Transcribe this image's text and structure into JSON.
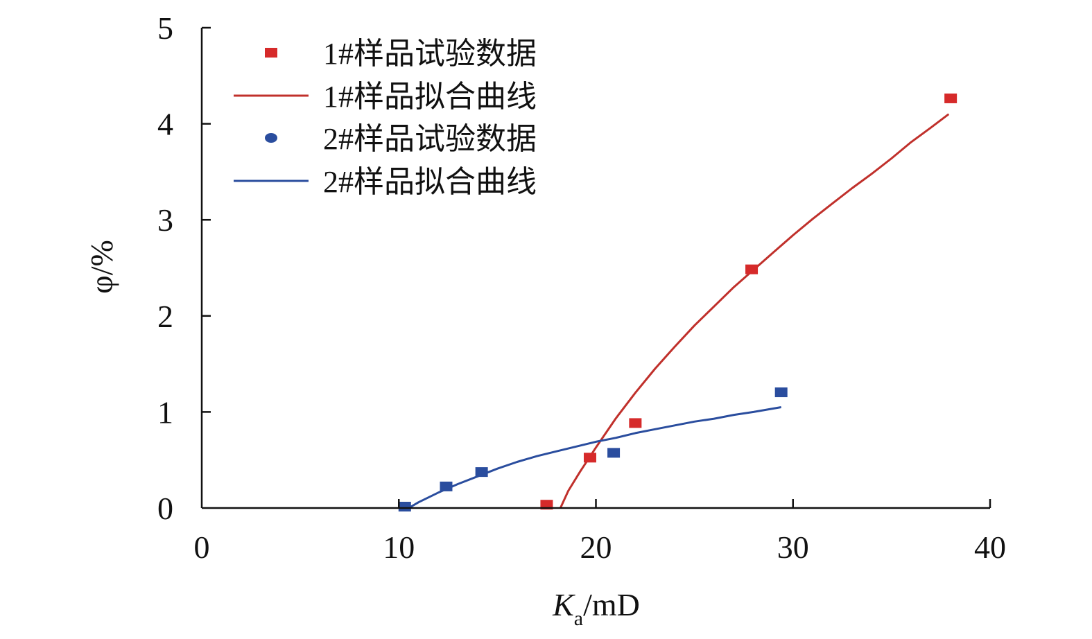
{
  "chart_data": {
    "type": "scatter",
    "title": "",
    "xlabel": {
      "main": "K",
      "sub": "a",
      "unit": "/mD"
    },
    "ylabel": "φ/%",
    "xlim": [
      0,
      40
    ],
    "ylim": [
      0,
      5
    ],
    "x_ticks": [
      "0",
      "10",
      "20",
      "30",
      "40"
    ],
    "y_ticks": [
      "0",
      "1",
      "2",
      "3",
      "4",
      "5"
    ],
    "grid": false,
    "legend_position": "top-left",
    "series": [
      {
        "name": "1#样品试验数据",
        "kind": "points",
        "marker": "square",
        "color": "#d62a2a",
        "x": [
          17.5,
          19.7,
          22.0,
          27.9,
          38.0
        ],
        "y": [
          0.02,
          0.51,
          0.87,
          2.47,
          4.25
        ]
      },
      {
        "name": "1#样品拟合曲线",
        "kind": "line",
        "color": "#c0302b",
        "x": [
          18.2,
          18.6,
          19.2,
          20.0,
          21.0,
          22.0,
          23.0,
          24.0,
          25.0,
          26.0,
          27.0,
          28.0,
          29.0,
          30.0,
          31.0,
          32.0,
          33.0,
          34.0,
          35.0,
          36.0,
          37.0,
          37.9
        ],
        "y": [
          0.0,
          0.18,
          0.38,
          0.63,
          0.93,
          1.2,
          1.45,
          1.68,
          1.9,
          2.1,
          2.3,
          2.48,
          2.66,
          2.84,
          3.01,
          3.17,
          3.33,
          3.48,
          3.64,
          3.81,
          3.96,
          4.1
        ]
      },
      {
        "name": "2#样品试验数据",
        "kind": "points",
        "marker": "square",
        "color": "#2a4d9e",
        "x": [
          10.3,
          12.4,
          14.2,
          20.9,
          29.4
        ],
        "y": [
          0.0,
          0.21,
          0.36,
          0.56,
          1.19
        ]
      },
      {
        "name": "2#样品拟合曲线",
        "kind": "line",
        "color": "#2a4d9e",
        "x": [
          10.5,
          11.0,
          12.0,
          13.0,
          14.0,
          15.0,
          16.0,
          17.0,
          18.0,
          19.0,
          20.0,
          21.0,
          22.0,
          23.0,
          24.0,
          25.0,
          26.0,
          27.0,
          28.0,
          29.4
        ],
        "y": [
          0.0,
          0.06,
          0.16,
          0.25,
          0.33,
          0.41,
          0.48,
          0.54,
          0.59,
          0.64,
          0.69,
          0.73,
          0.78,
          0.82,
          0.86,
          0.9,
          0.93,
          0.97,
          1.0,
          1.05
        ]
      }
    ],
    "legend": [
      {
        "label": "1#样品试验数据",
        "symbol": "square",
        "color": "#d62a2a"
      },
      {
        "label": "1#样品拟合曲线",
        "symbol": "line",
        "color": "#c0302b"
      },
      {
        "label": "2#样品试验数据",
        "symbol": "dot",
        "color": "#2a4d9e"
      },
      {
        "label": "2#样品拟合曲线",
        "symbol": "line",
        "color": "#2a4d9e"
      }
    ]
  }
}
